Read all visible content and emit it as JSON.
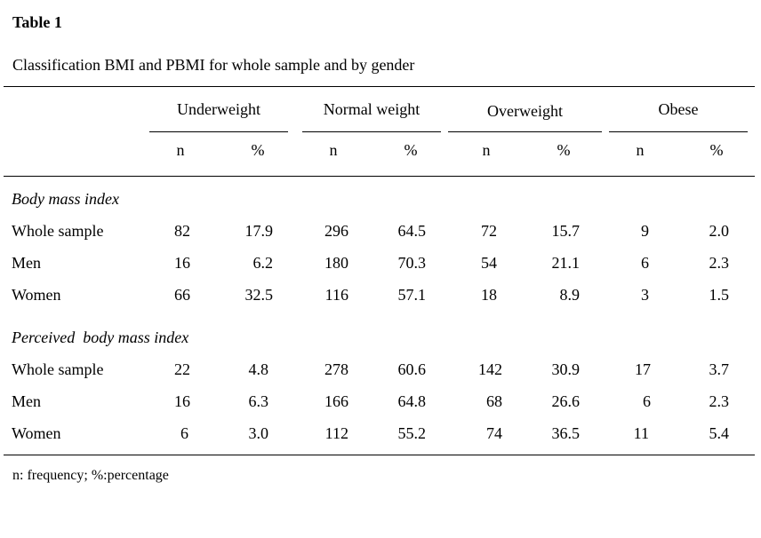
{
  "title": "Table 1",
  "caption": "Classification BMI and PBMI for whole sample and by gender",
  "groups": [
    "Underweight",
    "Normal weight",
    "Overweight",
    "Obese"
  ],
  "subheaders": [
    "n",
    "%",
    "n",
    "%",
    "n",
    "%",
    "n",
    "%"
  ],
  "sections": [
    {
      "label": "Body mass index",
      "rows": [
        {
          "label": "Whole sample",
          "values": [
            "82",
            "17.9",
            "296",
            "64.5",
            "72",
            "15.7",
            "9",
            "2.0"
          ]
        },
        {
          "label": "Men",
          "values": [
            "16",
            "6.2",
            "180",
            "70.3",
            "54",
            "21.1",
            "6",
            "2.3"
          ]
        },
        {
          "label": "Women",
          "values": [
            "66",
            "32.5",
            "116",
            "57.1",
            "18",
            "8.9",
            "3",
            "1.5"
          ]
        }
      ]
    },
    {
      "label": "Perceived  body mass index",
      "rows": [
        {
          "label": "Whole sample",
          "values": [
            "22",
            "4.8",
            "278",
            "60.6",
            "142",
            "30.9",
            "17",
            "3.7"
          ]
        },
        {
          "label": "Men",
          "values": [
            "16",
            "6.3",
            "166",
            "64.8",
            "68",
            "26.6",
            "6",
            "2.3"
          ]
        },
        {
          "label": "Women",
          "values": [
            "6",
            "3.0",
            "112",
            "55.2",
            "74",
            "36.5",
            "11",
            "5.4"
          ]
        }
      ]
    }
  ],
  "footnote": "n: frequency; %:percentage"
}
